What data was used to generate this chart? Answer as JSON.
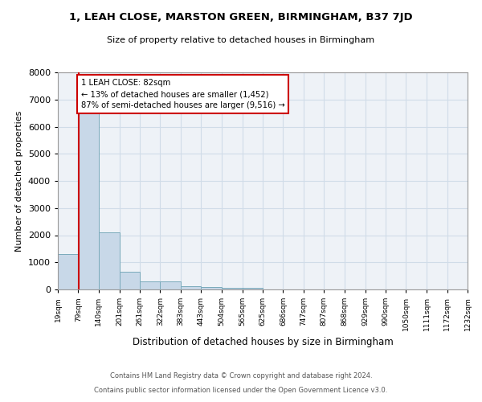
{
  "title": "1, LEAH CLOSE, MARSTON GREEN, BIRMINGHAM, B37 7JD",
  "subtitle": "Size of property relative to detached houses in Birmingham",
  "xlabel": "Distribution of detached houses by size in Birmingham",
  "ylabel": "Number of detached properties",
  "footer_line1": "Contains HM Land Registry data © Crown copyright and database right 2024.",
  "footer_line2": "Contains public sector information licensed under the Open Government Licence v3.0.",
  "bin_edges": [
    19,
    79,
    140,
    201,
    261,
    322,
    383,
    443,
    504,
    565,
    625,
    686,
    747,
    807,
    868,
    929,
    990,
    1050,
    1111,
    1172,
    1232
  ],
  "bar_heights": [
    1300,
    6550,
    2100,
    650,
    300,
    290,
    130,
    90,
    65,
    65,
    0,
    0,
    0,
    0,
    0,
    0,
    0,
    0,
    0,
    0
  ],
  "bar_color": "#c8d8e8",
  "bar_edge_color": "#7aaabb",
  "grid_color": "#d0dce8",
  "bg_color": "#eef2f7",
  "annotation_box_color": "#cc0000",
  "vline_color": "#cc0000",
  "vline_x": 82,
  "annotation_text": "1 LEAH CLOSE: 82sqm\n← 13% of detached houses are smaller (1,452)\n87% of semi-detached houses are larger (9,516) →",
  "ylim": [
    0,
    8000
  ],
  "yticks": [
    0,
    1000,
    2000,
    3000,
    4000,
    5000,
    6000,
    7000,
    8000
  ],
  "tick_labels": [
    "19sqm",
    "79sqm",
    "140sqm",
    "201sqm",
    "261sqm",
    "322sqm",
    "383sqm",
    "443sqm",
    "504sqm",
    "565sqm",
    "625sqm",
    "686sqm",
    "747sqm",
    "807sqm",
    "868sqm",
    "929sqm",
    "990sqm",
    "1050sqm",
    "1111sqm",
    "1172sqm",
    "1232sqm"
  ]
}
